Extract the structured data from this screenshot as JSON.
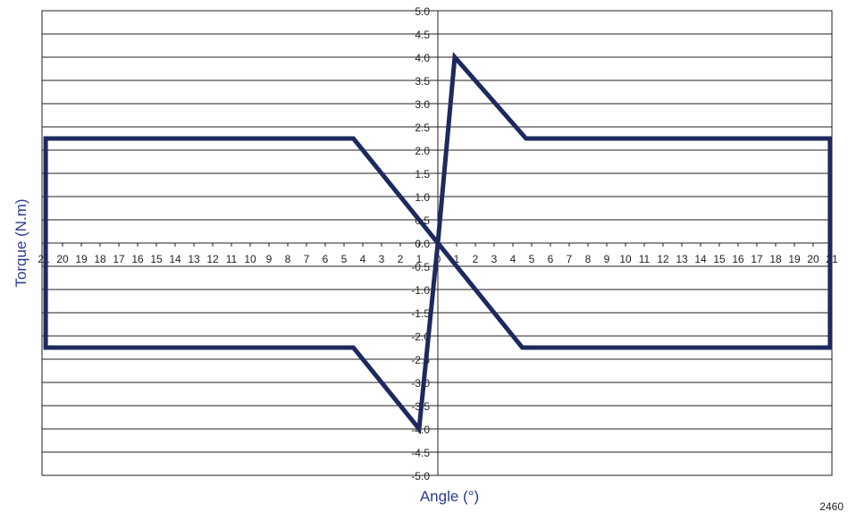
{
  "chart_data": {
    "type": "line",
    "xlabel": "Angle (°)",
    "ylabel": "Torque (N.m)",
    "xlim": [
      -21,
      21
    ],
    "ylim": [
      -5.0,
      5.0
    ],
    "grid": "horizontal",
    "line_color": "#1e2a5e",
    "title_color": "#2b3b8f",
    "x_tick_labels": [
      "21",
      "20",
      "19",
      "18",
      "17",
      "16",
      "15",
      "14",
      "13",
      "12",
      "11",
      "10",
      "9",
      "8",
      "7",
      "6",
      "5",
      "4",
      "3",
      "2",
      "1",
      "0",
      "1",
      "2",
      "3",
      "4",
      "5",
      "6",
      "7",
      "8",
      "9",
      "10",
      "11",
      "12",
      "13",
      "14",
      "15",
      "16",
      "17",
      "18",
      "19",
      "20",
      "21"
    ],
    "x_tick_values": [
      -21,
      -20,
      -19,
      -18,
      -17,
      -16,
      -15,
      -14,
      -13,
      -12,
      -11,
      -10,
      -9,
      -8,
      -7,
      -6,
      -5,
      -4,
      -3,
      -2,
      -1,
      0,
      1,
      2,
      3,
      4,
      5,
      6,
      7,
      8,
      9,
      10,
      11,
      12,
      13,
      14,
      15,
      16,
      17,
      18,
      19,
      20,
      21
    ],
    "y_tick_labels": [
      "5.0",
      "4.5",
      "4.0",
      "3.5",
      "3.0",
      "2.5",
      "2.0",
      "1.5",
      "1.0",
      "0.5",
      "0.0",
      "-0.5",
      "-1.0",
      "-1.5",
      "-2.0",
      "-2.5",
      "-3.0",
      "-3.5",
      "-4.0",
      "-4.5",
      "-5.0"
    ],
    "y_tick_values": [
      5.0,
      4.5,
      4.0,
      3.5,
      3.0,
      2.5,
      2.0,
      1.5,
      1.0,
      0.5,
      0.0,
      -0.5,
      -1.0,
      -1.5,
      -2.0,
      -2.5,
      -3.0,
      -3.5,
      -4.0,
      -4.5,
      -5.0
    ],
    "series": [
      {
        "points": [
          [
            0,
            0
          ],
          [
            0.9,
            4.0
          ],
          [
            4.7,
            2.25
          ],
          [
            20.9,
            2.25
          ],
          [
            20.9,
            -2.25
          ],
          [
            4.5,
            -2.25
          ],
          [
            0,
            0
          ],
          [
            -4.5,
            2.25
          ],
          [
            -20.9,
            2.25
          ],
          [
            -20.9,
            -2.25
          ],
          [
            -4.5,
            -2.25
          ],
          [
            -1.0,
            -4.0
          ],
          [
            0,
            0
          ]
        ]
      }
    ]
  },
  "figure_id": "2460"
}
